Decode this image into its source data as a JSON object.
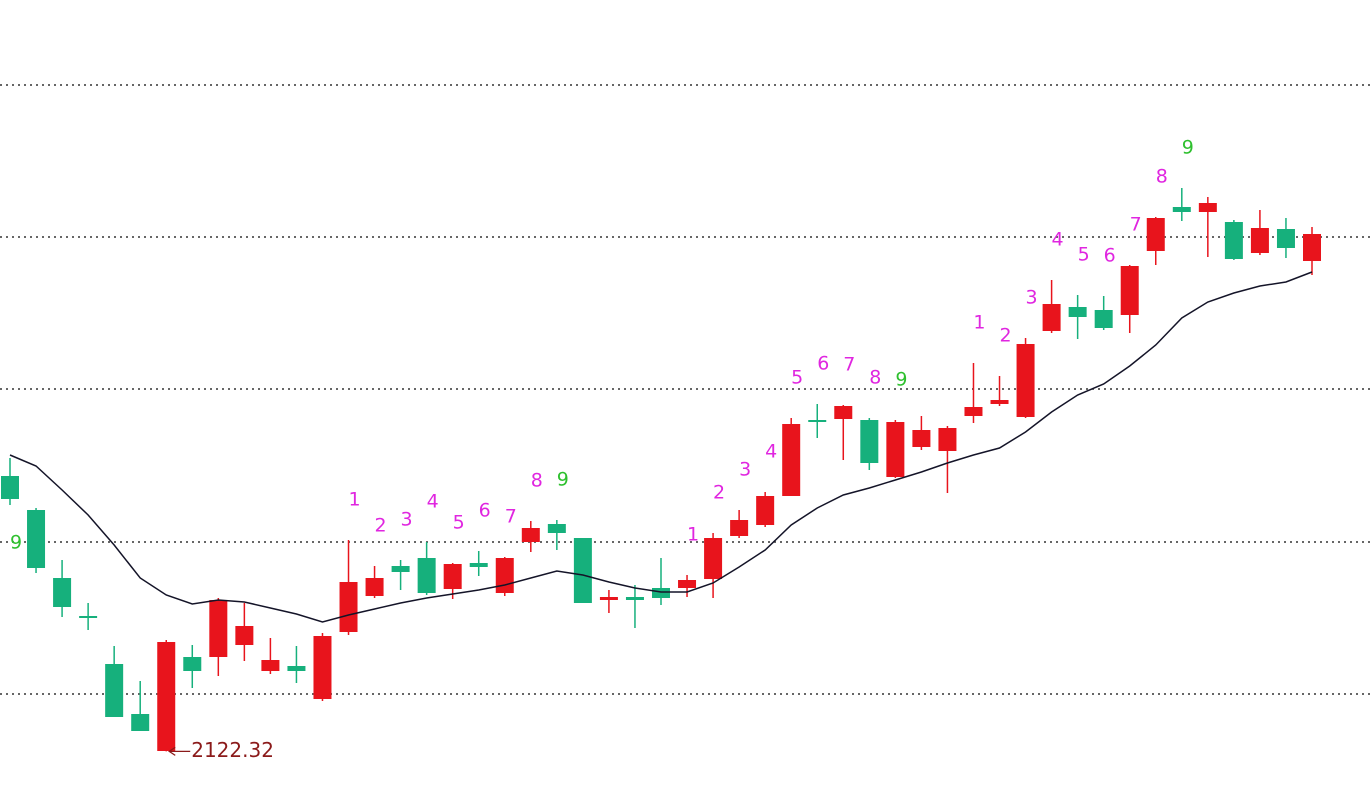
{
  "chart_data": {
    "type": "candlestick",
    "ylim": [
      2092,
      2498
    ],
    "yticks": [
      2455.5,
      2379.5,
      2303.5,
      2227,
      2151
    ],
    "grid": true,
    "up_color": "#e8141c",
    "down_color": "#16b07c",
    "open": [
      2260,
      2243,
      2209,
      2190,
      2166,
      2141,
      2122.5,
      2169.5,
      2169.5,
      2175.5,
      2162.5,
      2165,
      2148.5,
      2182,
      2200,
      2215,
      2219,
      2203.5,
      2216.5,
      2201.5,
      2227,
      2236,
      2229,
      2198,
      2199.5,
      2204,
      2204,
      2208.5,
      2230,
      2235.5,
      2250,
      2288,
      2288.5,
      2288,
      2259.5,
      2274.5,
      2272.5,
      2290,
      2296,
      2289.5,
      2332.5,
      2344.5,
      2343,
      2340.5,
      2372.5,
      2394.5,
      2392,
      2387,
      2371.5,
      2383.5,
      2367.5
    ],
    "high": [
      2269,
      2244,
      2218,
      2196.5,
      2175,
      2157.5,
      2178,
      2175.5,
      2199,
      2196.5,
      2179,
      2175,
      2181.5,
      2228,
      2215,
      2218,
      2227,
      2216.5,
      2222.5,
      2219.5,
      2237.5,
      2238,
      2229,
      2203,
      2205.5,
      2219,
      2210.5,
      2231.5,
      2243,
      2252,
      2289,
      2296,
      2295.5,
      2289,
      2288,
      2290,
      2285,
      2316.5,
      2310,
      2329,
      2358,
      2350.5,
      2350,
      2365.5,
      2389.5,
      2404,
      2399.5,
      2388,
      2393,
      2389,
      2384.5
    ],
    "low": [
      2245.5,
      2211.5,
      2189.5,
      2183,
      2139.5,
      2132.5,
      2122.32,
      2154,
      2160,
      2167.5,
      2161,
      2156.5,
      2147.5,
      2180.5,
      2199,
      2203,
      2200.5,
      2198.5,
      2210,
      2200,
      2222,
      2223,
      2196.5,
      2191.5,
      2184,
      2195.5,
      2199.5,
      2199,
      2229,
      2234.5,
      2250,
      2279,
      2268,
      2263,
      2259,
      2273,
      2251.5,
      2286.5,
      2295,
      2289,
      2331.5,
      2328.5,
      2333,
      2331.5,
      2365.5,
      2387.5,
      2369.5,
      2368,
      2370.5,
      2369,
      2360.5
    ],
    "close": [
      2248.5,
      2214,
      2194.5,
      2189,
      2139.5,
      2132.5,
      2177,
      2162.5,
      2198,
      2185,
      2168,
      2162.5,
      2180,
      2207,
      2209,
      2212,
      2201.5,
      2216,
      2214.5,
      2219,
      2234,
      2231.5,
      2196.5,
      2199.5,
      2198,
      2199,
      2208,
      2229,
      2238,
      2250,
      2286,
      2287,
      2295,
      2266.5,
      2287,
      2283,
      2284,
      2294.5,
      2298,
      2326,
      2346,
      2339.5,
      2334,
      2365,
      2389,
      2392,
      2396.5,
      2368.5,
      2384,
      2374,
      2381
    ],
    "ma": {
      "color": "#141428",
      "values": [
        2270.5,
        2265,
        2253,
        2240.5,
        2225.5,
        2209,
        2200.5,
        2196,
        2198,
        2197,
        2194,
        2191,
        2187,
        2190.5,
        2193.5,
        2196.5,
        2199,
        2201,
        2203,
        2205.5,
        2209,
        2212.5,
        2210.5,
        2207,
        2204,
        2202,
        2202,
        2206.5,
        2214.5,
        2223,
        2235.5,
        2244,
        2250.5,
        2254,
        2258,
        2262,
        2266.5,
        2270.5,
        2274,
        2282,
        2292,
        2300.5,
        2306,
        2315,
        2325.5,
        2339,
        2347,
        2351.5,
        2355,
        2357,
        2362
      ]
    },
    "counts": [
      {
        "index": 0,
        "text": "9",
        "color": "#2ec02e",
        "position": "below"
      },
      {
        "index": 13,
        "text": "1",
        "color": "#e026e0",
        "position": "above"
      },
      {
        "index": 14,
        "text": "2",
        "color": "#e026e0",
        "position": "above"
      },
      {
        "index": 15,
        "text": "3",
        "color": "#e026e0",
        "position": "above"
      },
      {
        "index": 16,
        "text": "4",
        "color": "#e026e0",
        "position": "above"
      },
      {
        "index": 17,
        "text": "5",
        "color": "#e026e0",
        "position": "above"
      },
      {
        "index": 18,
        "text": "6",
        "color": "#e026e0",
        "position": "above"
      },
      {
        "index": 19,
        "text": "7",
        "color": "#e026e0",
        "position": "above"
      },
      {
        "index": 20,
        "text": "8",
        "color": "#e026e0",
        "position": "above"
      },
      {
        "index": 21,
        "text": "9",
        "color": "#2ec02e",
        "position": "above"
      },
      {
        "index": 26,
        "text": "1",
        "color": "#e026e0",
        "position": "above"
      },
      {
        "index": 27,
        "text": "2",
        "color": "#e026e0",
        "position": "above"
      },
      {
        "index": 28,
        "text": "3",
        "color": "#e026e0",
        "position": "above"
      },
      {
        "index": 29,
        "text": "4",
        "color": "#e026e0",
        "position": "above"
      },
      {
        "index": 30,
        "text": "5",
        "color": "#e026e0",
        "position": "above"
      },
      {
        "index": 31,
        "text": "6",
        "color": "#e026e0",
        "position": "above"
      },
      {
        "index": 32,
        "text": "7",
        "color": "#e026e0",
        "position": "above"
      },
      {
        "index": 33,
        "text": "8",
        "color": "#e026e0",
        "position": "above"
      },
      {
        "index": 34,
        "text": "9",
        "color": "#2ec02e",
        "position": "above"
      },
      {
        "index": 37,
        "text": "1",
        "color": "#e026e0",
        "position": "above"
      },
      {
        "index": 38,
        "text": "2",
        "color": "#e026e0",
        "position": "above"
      },
      {
        "index": 39,
        "text": "3",
        "color": "#e026e0",
        "position": "above"
      },
      {
        "index": 40,
        "text": "4",
        "color": "#e026e0",
        "position": "above"
      },
      {
        "index": 41,
        "text": "5",
        "color": "#e026e0",
        "position": "above"
      },
      {
        "index": 42,
        "text": "6",
        "color": "#e026e0",
        "position": "above"
      },
      {
        "index": 43,
        "text": "7",
        "color": "#e026e0",
        "position": "above"
      },
      {
        "index": 44,
        "text": "8",
        "color": "#e026e0",
        "position": "above"
      },
      {
        "index": 45,
        "text": "9",
        "color": "#2ec02e",
        "position": "above"
      }
    ],
    "low_label": {
      "index": 6,
      "label": "2122.32"
    }
  }
}
